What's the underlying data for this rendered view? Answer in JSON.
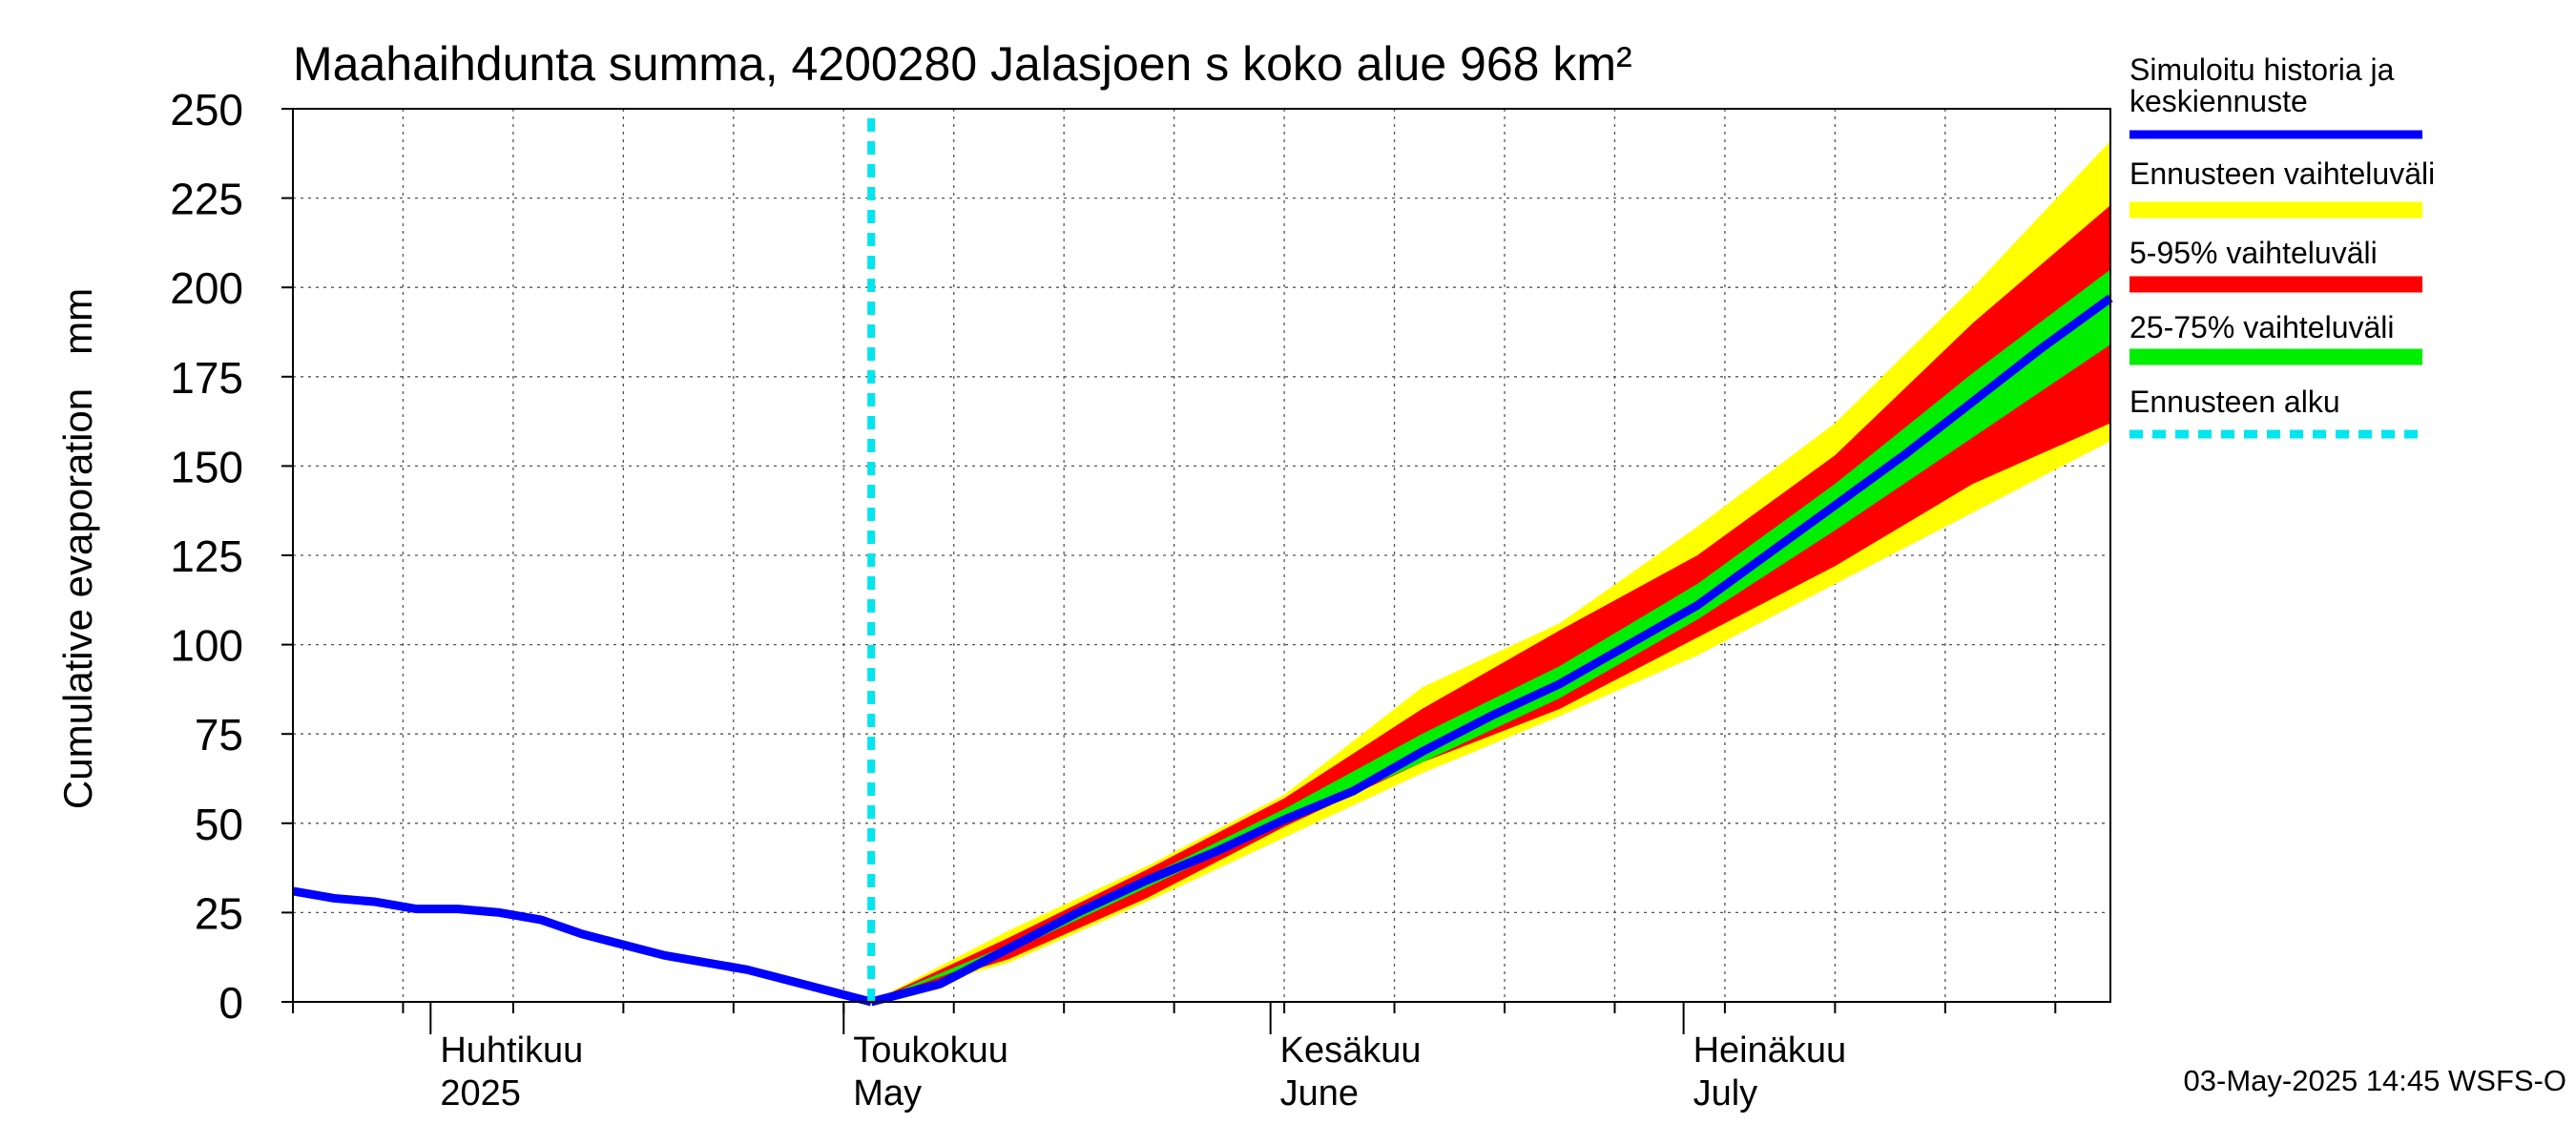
{
  "chart_data": {
    "type": "area",
    "title": "Maahaihdunta summa, 4200280 Jalasjoen s koko alue 968 km²",
    "ylabel": "Cumulative evaporation   mm",
    "ylim": [
      0,
      250
    ],
    "yticks": [
      0,
      25,
      50,
      75,
      100,
      125,
      150,
      175,
      200,
      225,
      250
    ],
    "xlim": [
      "2025-03-22",
      "2025-08-01"
    ],
    "month_labels": [
      {
        "date": "2025-04-01",
        "fi": "Huhtikuu",
        "en": "2025"
      },
      {
        "date": "2025-05-01",
        "fi": "Toukokuu",
        "en": "May"
      },
      {
        "date": "2025-06-01",
        "fi": "Kesäkuu",
        "en": "June"
      },
      {
        "date": "2025-07-01",
        "fi": "Heinäkuu",
        "en": "July"
      }
    ],
    "forecast_start": "2025-05-03",
    "timestamp": "03-May-2025 14:45 WSFS-O",
    "legend": [
      {
        "key": "median",
        "label": "Simuloitu historia ja keskiennuste",
        "color": "#0000ff"
      },
      {
        "key": "range",
        "label": "Ennusteen vaihteluväli",
        "color": "#ffff00"
      },
      {
        "key": "p5_95",
        "label": "5-95% vaihteluväli",
        "color": "#ff0000"
      },
      {
        "key": "p25_75",
        "label": "25-75% vaihteluväli",
        "color": "#00ee00"
      },
      {
        "key": "start",
        "label": "Ennusteen alku",
        "color": "#00e5ee"
      }
    ],
    "history": [
      [
        "2025-03-22",
        31
      ],
      [
        "2025-03-25",
        29
      ],
      [
        "2025-03-28",
        28
      ],
      [
        "2025-03-31",
        26
      ],
      [
        "2025-04-03",
        26
      ],
      [
        "2025-04-06",
        25
      ],
      [
        "2025-04-09",
        23
      ],
      [
        "2025-04-12",
        19
      ],
      [
        "2025-04-15",
        16
      ],
      [
        "2025-04-18",
        13
      ],
      [
        "2025-04-21",
        11
      ],
      [
        "2025-04-24",
        9
      ],
      [
        "2025-04-27",
        6
      ],
      [
        "2025-04-30",
        3
      ],
      [
        "2025-05-03",
        0
      ]
    ],
    "median": [
      [
        "2025-05-03",
        0
      ],
      [
        "2025-05-08",
        5
      ],
      [
        "2025-05-13",
        15
      ],
      [
        "2025-05-18",
        25
      ],
      [
        "2025-05-23",
        34
      ],
      [
        "2025-05-28",
        42
      ],
      [
        "2025-06-02",
        51
      ],
      [
        "2025-06-07",
        59
      ],
      [
        "2025-06-12",
        70
      ],
      [
        "2025-06-17",
        80
      ],
      [
        "2025-06-22",
        89
      ],
      [
        "2025-06-27",
        100
      ],
      [
        "2025-07-02",
        111
      ],
      [
        "2025-07-07",
        125
      ],
      [
        "2025-07-12",
        139
      ],
      [
        "2025-07-17",
        153
      ],
      [
        "2025-07-22",
        168
      ],
      [
        "2025-07-27",
        183
      ],
      [
        "2025-08-01",
        197
      ]
    ],
    "range_upper": [
      [
        "2025-05-03",
        0
      ],
      [
        "2025-05-13",
        20
      ],
      [
        "2025-05-23",
        38
      ],
      [
        "2025-06-02",
        58
      ],
      [
        "2025-06-12",
        88
      ],
      [
        "2025-06-22",
        106
      ],
      [
        "2025-07-02",
        133
      ],
      [
        "2025-07-12",
        162
      ],
      [
        "2025-07-22",
        200
      ],
      [
        "2025-08-01",
        241
      ]
    ],
    "range_lower": [
      [
        "2025-05-03",
        0
      ],
      [
        "2025-05-13",
        11
      ],
      [
        "2025-05-23",
        28
      ],
      [
        "2025-06-02",
        46
      ],
      [
        "2025-06-12",
        64
      ],
      [
        "2025-06-22",
        80
      ],
      [
        "2025-07-02",
        97
      ],
      [
        "2025-07-12",
        117
      ],
      [
        "2025-07-22",
        137
      ],
      [
        "2025-08-01",
        157
      ]
    ],
    "p5_95_upper": [
      [
        "2025-05-03",
        0
      ],
      [
        "2025-05-13",
        18
      ],
      [
        "2025-05-23",
        37
      ],
      [
        "2025-06-02",
        57
      ],
      [
        "2025-06-12",
        82
      ],
      [
        "2025-06-22",
        104
      ],
      [
        "2025-07-02",
        125
      ],
      [
        "2025-07-12",
        153
      ],
      [
        "2025-07-22",
        190
      ],
      [
        "2025-08-01",
        223
      ]
    ],
    "p5_95_lower": [
      [
        "2025-05-03",
        0
      ],
      [
        "2025-05-13",
        12
      ],
      [
        "2025-05-23",
        29
      ],
      [
        "2025-06-02",
        49
      ],
      [
        "2025-06-12",
        67
      ],
      [
        "2025-06-22",
        82
      ],
      [
        "2025-07-02",
        102
      ],
      [
        "2025-07-12",
        122
      ],
      [
        "2025-07-22",
        145
      ],
      [
        "2025-08-01",
        162
      ]
    ],
    "p25_75_upper": [
      [
        "2025-05-03",
        0
      ],
      [
        "2025-05-13",
        16
      ],
      [
        "2025-05-23",
        35
      ],
      [
        "2025-06-02",
        54
      ],
      [
        "2025-06-12",
        75
      ],
      [
        "2025-06-22",
        94
      ],
      [
        "2025-07-02",
        117
      ],
      [
        "2025-07-12",
        145
      ],
      [
        "2025-07-22",
        176
      ],
      [
        "2025-08-01",
        205
      ]
    ],
    "p25_75_lower": [
      [
        "2025-05-03",
        0
      ],
      [
        "2025-05-13",
        14
      ],
      [
        "2025-05-23",
        32
      ],
      [
        "2025-06-02",
        50
      ],
      [
        "2025-06-12",
        67
      ],
      [
        "2025-06-22",
        85
      ],
      [
        "2025-07-02",
        107
      ],
      [
        "2025-07-12",
        132
      ],
      [
        "2025-07-22",
        158
      ],
      [
        "2025-08-01",
        184
      ]
    ]
  }
}
